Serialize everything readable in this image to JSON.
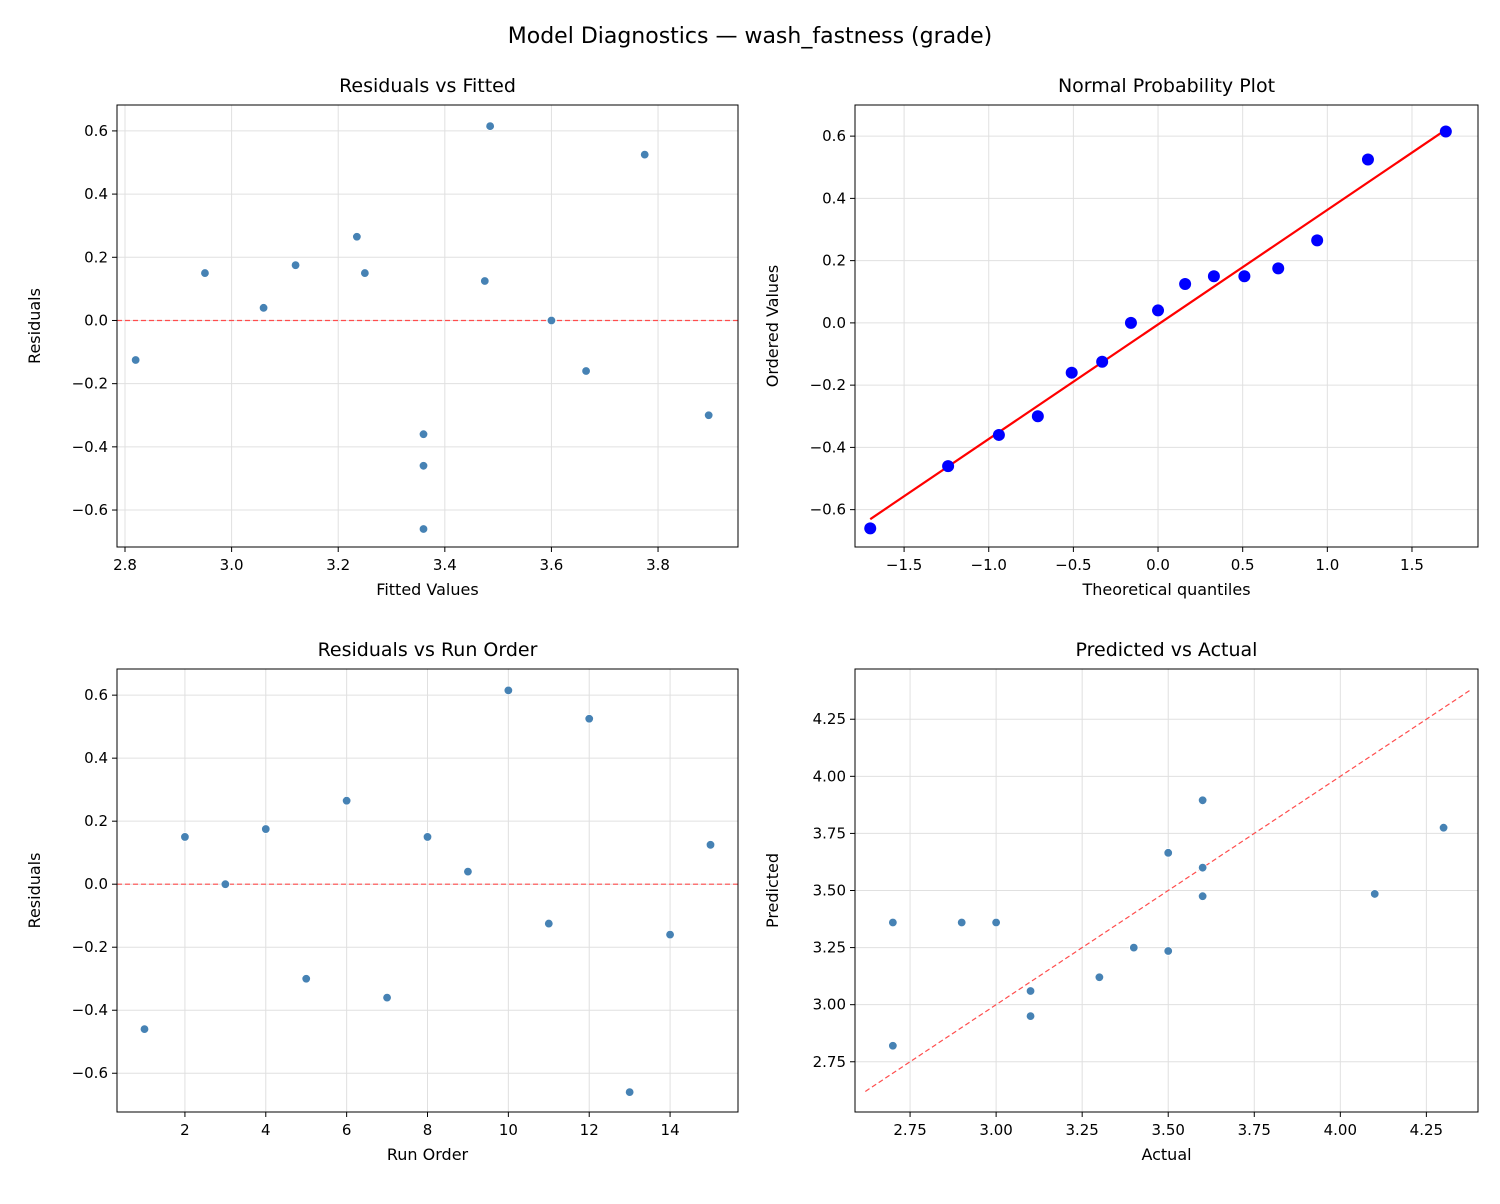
{
  "title": "Model Diagnostics — wash_fastness (grade)",
  "colors": {
    "points": "#4682b4",
    "prob_points": "#0000ff",
    "fit_line": "#ff0000",
    "reference_line": "#ff4d4d",
    "grid": "#e0e0e0"
  },
  "chart_data": [
    {
      "type": "scatter",
      "title": "Residuals vs Fitted",
      "xlabel": "Fitted Values",
      "ylabel": "Residuals",
      "xlim": [
        2.785,
        3.95
      ],
      "ylim": [
        -0.717,
        0.682
      ],
      "xticks": [
        2.8,
        3.0,
        3.2,
        3.4,
        3.6,
        3.8
      ],
      "yticks": [
        -0.6,
        -0.4,
        -0.2,
        0.0,
        0.2,
        0.4,
        0.6
      ],
      "tick_decimals": 1,
      "grid": true,
      "reference": {
        "type": "hline",
        "y": 0,
        "style": "dashed"
      },
      "x": [
        3.36,
        2.95,
        3.6,
        3.12,
        3.895,
        3.235,
        3.36,
        3.25,
        3.06,
        3.485,
        2.82,
        3.775,
        3.36,
        3.665,
        3.475
      ],
      "y": [
        -0.46,
        0.15,
        0.0,
        0.175,
        -0.3,
        0.265,
        -0.36,
        0.15,
        0.04,
        0.615,
        -0.125,
        0.525,
        -0.66,
        -0.16,
        0.125
      ]
    },
    {
      "type": "scatter",
      "title": "Normal Probability Plot",
      "xlabel": "Theoretical quantiles",
      "ylabel": "Ordered Values",
      "xlim": [
        -1.79,
        1.89
      ],
      "ylim": [
        -0.72,
        0.7
      ],
      "xticks": [
        -1.5,
        -1.0,
        -0.5,
        0.0,
        0.5,
        1.0,
        1.5
      ],
      "yticks": [
        -0.6,
        -0.4,
        -0.2,
        0.0,
        0.2,
        0.4,
        0.6
      ],
      "tick_decimals": 1,
      "grid": true,
      "fit_line": {
        "slope": 0.368,
        "intercept": -0.005
      },
      "x": [
        -1.7,
        -1.24,
        -0.94,
        -0.71,
        -0.51,
        -0.33,
        -0.16,
        0.0,
        0.16,
        0.33,
        0.51,
        0.71,
        0.94,
        1.24,
        1.7
      ],
      "y": [
        -0.66,
        -0.46,
        -0.36,
        -0.3,
        -0.16,
        -0.125,
        0.0,
        0.04,
        0.125,
        0.15,
        0.15,
        0.175,
        0.265,
        0.525,
        0.615
      ]
    },
    {
      "type": "scatter",
      "title": "Residuals vs Run Order",
      "xlabel": "Run Order",
      "ylabel": "Residuals",
      "xlim": [
        0.32,
        15.68
      ],
      "ylim": [
        -0.723,
        0.683
      ],
      "xticks": [
        2,
        4,
        6,
        8,
        10,
        12,
        14
      ],
      "yticks": [
        -0.6,
        -0.4,
        -0.2,
        0.0,
        0.2,
        0.4,
        0.6
      ],
      "tick_decimals": 1,
      "xtick_decimals": 0,
      "grid": true,
      "reference": {
        "type": "hline",
        "y": 0,
        "style": "dashed"
      },
      "x": [
        1,
        2,
        3,
        4,
        5,
        6,
        7,
        8,
        9,
        10,
        11,
        12,
        13,
        14,
        15
      ],
      "y": [
        -0.46,
        0.15,
        0.0,
        0.175,
        -0.3,
        0.265,
        -0.36,
        0.15,
        0.04,
        0.615,
        -0.125,
        0.525,
        -0.66,
        -0.16,
        0.125
      ]
    },
    {
      "type": "scatter",
      "title": "Predicted vs Actual",
      "xlabel": "Actual",
      "ylabel": "Predicted",
      "xlim": [
        2.59,
        4.4
      ],
      "ylim": [
        2.53,
        4.47
      ],
      "xticks": [
        2.75,
        3.0,
        3.25,
        3.5,
        3.75,
        4.0,
        4.25
      ],
      "yticks": [
        2.75,
        3.0,
        3.25,
        3.5,
        3.75,
        4.0,
        4.25
      ],
      "tick_decimals": 2,
      "grid": true,
      "reference": {
        "type": "diagonal",
        "from": 2.62,
        "to": 4.38,
        "style": "dashed"
      },
      "x": [
        2.9,
        3.1,
        3.6,
        3.3,
        3.6,
        3.5,
        3.0,
        3.4,
        3.1,
        4.1,
        2.7,
        4.3,
        2.7,
        3.5,
        3.6
      ],
      "y": [
        3.36,
        2.95,
        3.6,
        3.12,
        3.895,
        3.235,
        3.36,
        3.25,
        3.06,
        3.485,
        2.82,
        3.775,
        3.36,
        3.665,
        3.475
      ]
    }
  ]
}
